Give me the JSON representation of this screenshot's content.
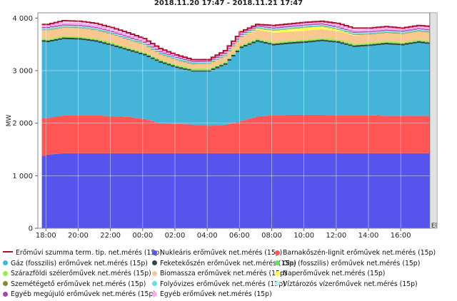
{
  "chart_data": {
    "type": "area",
    "stacked": true,
    "title": "2018.11.20 17:47 - 2018.11.21 17:47",
    "ylabel": "MW",
    "xlabel": "",
    "ylim": [
      0,
      4100
    ],
    "y_ticks": [
      "0",
      "1 000",
      "2 000",
      "3 000",
      "4 000"
    ],
    "y_tick_values": [
      0,
      1000,
      2000,
      3000,
      4000
    ],
    "x_tick_labels": [
      "18:00",
      "20:00",
      "22:00",
      "00:00",
      "02:00",
      "04:00",
      "06:00",
      "08:00",
      "10:00",
      "12:00",
      "14:00",
      "16:00"
    ],
    "x_hours": [
      17.75,
      18,
      19,
      20,
      21,
      22,
      23,
      24,
      25,
      26,
      27,
      28,
      29,
      30,
      31,
      32,
      33,
      34,
      35,
      36,
      37,
      38,
      39,
      40,
      41,
      41.8
    ],
    "xlim": [
      17.5,
      42.25
    ],
    "forecast_from_hour": 41.8,
    "forecast_label": "Előrejelzés",
    "series": [
      {
        "name": "Nukleáris erőművek net.mérés (15p)",
        "color": "#5555ee",
        "values": [
          1380,
          1400,
          1430,
          1430,
          1430,
          1430,
          1430,
          1430,
          1430,
          1430,
          1430,
          1430,
          1430,
          1430,
          1430,
          1430,
          1430,
          1430,
          1430,
          1430,
          1430,
          1430,
          1430,
          1430,
          1430,
          1430
        ]
      },
      {
        "name": "Barnakőszén-lignit erőművek net.mérés (15p)",
        "color": "#ff5555",
        "values": [
          720,
          700,
          720,
          720,
          720,
          700,
          690,
          650,
          570,
          560,
          540,
          520,
          540,
          610,
          700,
          720,
          730,
          730,
          730,
          720,
          720,
          720,
          710,
          710,
          710,
          710
        ]
      },
      {
        "name": "Gáz (fosszilis) erőművek net.mérés (15p)",
        "color": "#44b4d8",
        "values": [
          1450,
          1440,
          1450,
          1440,
          1400,
          1340,
          1260,
          1210,
          1150,
          1060,
          1010,
          1030,
          1140,
          1390,
          1420,
          1330,
          1350,
          1370,
          1400,
          1380,
          1300,
          1320,
          1360,
          1340,
          1390,
          1360
        ]
      },
      {
        "name": "Feketekőszén erőművek net.mérés (15p)",
        "color": "#334444",
        "values": [
          30,
          30,
          30,
          30,
          30,
          30,
          30,
          30,
          30,
          30,
          30,
          30,
          30,
          30,
          30,
          30,
          30,
          30,
          30,
          30,
          30,
          30,
          30,
          30,
          30,
          30
        ]
      },
      {
        "name": "Olaj (fosszilis) erőművek net.mérés (15p)",
        "color": "#66dd66",
        "values": [
          10,
          10,
          10,
          10,
          10,
          10,
          10,
          10,
          10,
          10,
          10,
          10,
          10,
          10,
          10,
          10,
          10,
          10,
          10,
          10,
          10,
          10,
          10,
          10,
          10,
          10
        ]
      },
      {
        "name": "Szárazföldi szélerőművek net.mérés (15p)",
        "color": "#99ee44",
        "values": [
          20,
          20,
          20,
          20,
          20,
          20,
          20,
          20,
          20,
          20,
          20,
          20,
          20,
          20,
          20,
          20,
          20,
          20,
          20,
          20,
          20,
          20,
          20,
          20,
          20,
          20
        ]
      },
      {
        "name": "Biomassza erőművek net.mérés (15p)",
        "color": "#f8c890",
        "values": [
          160,
          170,
          160,
          160,
          160,
          160,
          150,
          140,
          100,
          90,
          80,
          90,
          110,
          150,
          170,
          180,
          170,
          170,
          170,
          160,
          160,
          160,
          160,
          160,
          160,
          160
        ]
      },
      {
        "name": "Naperőművek net.mérés (15p)",
        "color": "#ffff55",
        "values": [
          0,
          0,
          0,
          0,
          0,
          0,
          0,
          0,
          0,
          0,
          0,
          0,
          0,
          0,
          20,
          40,
          50,
          60,
          50,
          30,
          10,
          0,
          0,
          0,
          0,
          0
        ]
      },
      {
        "name": "Szemétégető erőművek net.mérés (15p)",
        "color": "#888833",
        "values": [
          10,
          10,
          10,
          10,
          10,
          10,
          10,
          10,
          10,
          10,
          10,
          10,
          10,
          10,
          10,
          10,
          10,
          10,
          10,
          10,
          10,
          10,
          10,
          10,
          10,
          10
        ]
      },
      {
        "name": "Folyóvizes erőművek net.mérés (15p)",
        "color": "#66dddd",
        "values": [
          20,
          20,
          20,
          20,
          20,
          20,
          20,
          20,
          20,
          20,
          20,
          20,
          20,
          20,
          20,
          20,
          20,
          20,
          20,
          20,
          20,
          20,
          20,
          20,
          20,
          20
        ]
      },
      {
        "name": "Víztározós vízerőművek net.mérés (15p)",
        "color": "#bbeeff",
        "values": [
          10,
          10,
          10,
          10,
          10,
          10,
          10,
          10,
          10,
          10,
          10,
          10,
          10,
          10,
          10,
          10,
          10,
          10,
          10,
          10,
          10,
          10,
          10,
          10,
          10,
          10
        ]
      },
      {
        "name": "Egyéb megújuló erőművek net.mérés (15p)",
        "color": "#aa44aa",
        "values": [
          20,
          20,
          20,
          20,
          20,
          20,
          20,
          20,
          20,
          20,
          20,
          20,
          20,
          20,
          20,
          20,
          20,
          20,
          20,
          20,
          20,
          20,
          20,
          20,
          20,
          20
        ]
      },
      {
        "name": "Egyéb erőművek net.mérés (15p)",
        "color": "#ffaaee",
        "values": [
          40,
          40,
          40,
          40,
          40,
          40,
          40,
          40,
          40,
          40,
          40,
          40,
          40,
          40,
          40,
          40,
          40,
          40,
          40,
          40,
          40,
          40,
          40,
          40,
          40,
          40
        ]
      }
    ],
    "total_line": {
      "name": "Erőművi szumma term. tip. net.mérés (15p)",
      "color": "#aa1133",
      "values": [
        3880,
        3880,
        3950,
        3940,
        3900,
        3820,
        3720,
        3610,
        3420,
        3300,
        3210,
        3210,
        3380,
        3740,
        3880,
        3860,
        3890,
        3920,
        3940,
        3900,
        3810,
        3810,
        3840,
        3810,
        3860,
        3840
      ]
    },
    "legend_position": "bottom",
    "grid": true
  }
}
